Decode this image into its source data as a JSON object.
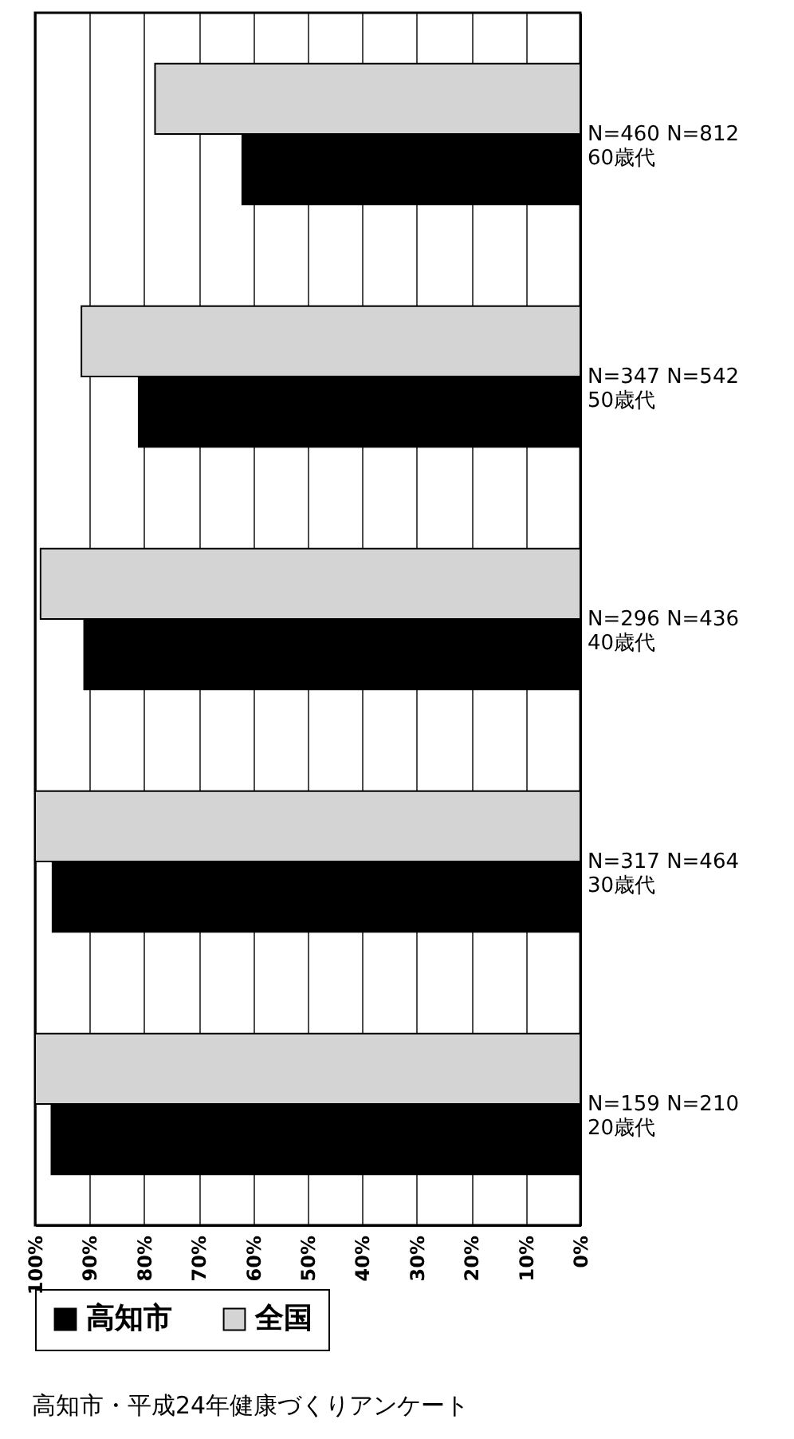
{
  "chart_data": {
    "type": "bar",
    "orientation": "horizontal",
    "categories": [
      "N=460 N=812\n60歳代",
      "N=347 N=542\n50歳代",
      "N=296 N=436\n40歳代",
      "N=317 N=464\n30歳代",
      "N=159 N=210\n20歳代"
    ],
    "series": [
      {
        "name": "高知市",
        "color": "#000000",
        "values": [
          62,
          81,
          91,
          96.8,
          97
        ]
      },
      {
        "name": "全国",
        "color": "#d4d4d4",
        "values": [
          78,
          91.5,
          99,
          100,
          100
        ]
      }
    ],
    "xlim": [
      100,
      0
    ],
    "xticks": [
      {
        "value": 100,
        "label": "100%"
      },
      {
        "value": 90,
        "label": "90%"
      },
      {
        "value": 80,
        "label": "80%"
      },
      {
        "value": 70,
        "label": "70%"
      },
      {
        "value": 60,
        "label": "60%"
      },
      {
        "value": 50,
        "label": "50%"
      },
      {
        "value": 40,
        "label": "40%"
      },
      {
        "value": 30,
        "label": "30%"
      },
      {
        "value": 20,
        "label": "20%"
      },
      {
        "value": 10,
        "label": "10%"
      },
      {
        "value": 0,
        "label": "0%"
      }
    ],
    "grid": "x",
    "legend": "bottom left",
    "annotations": [
      "高知市・平成24年健康づくりアンケート"
    ]
  }
}
